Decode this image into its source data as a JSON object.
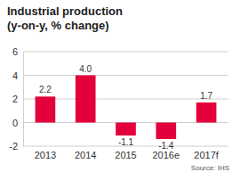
{
  "chart_data": {
    "type": "bar",
    "title": "Industrial production",
    "subtitle": "(y-on-y, % change)",
    "categories": [
      "2013",
      "2014",
      "2015",
      "2016e",
      "2017f"
    ],
    "values": [
      2.2,
      4.0,
      -1.1,
      -1.4,
      1.7
    ],
    "value_labels": [
      "2.2",
      "4.0",
      "-1.1",
      "-1.4",
      "1.7"
    ],
    "color": "#e4003b",
    "ylim": [
      -2,
      6
    ],
    "yticks": [
      -2,
      0,
      2,
      4,
      6
    ],
    "grid": true,
    "data_labels": true,
    "source": "Source: IHS"
  }
}
